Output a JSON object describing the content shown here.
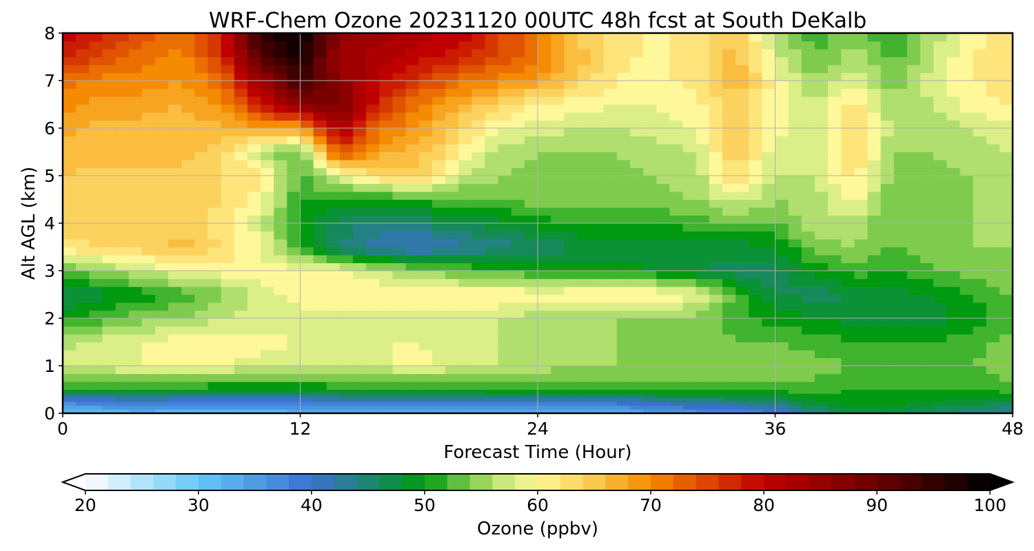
{
  "chart_data": {
    "type": "heatmap",
    "title": "WRF-Chem Ozone  20231120 00UTC 48h fcst at South DeKalb",
    "xlabel": "Forecast Time (Hour)",
    "ylabel": "Alt AGL (km)",
    "xlim": [
      0,
      48
    ],
    "ylim": [
      0,
      8
    ],
    "xticks": [
      0,
      12,
      24,
      36,
      48
    ],
    "yticks": [
      0,
      1,
      2,
      3,
      4,
      5,
      6,
      7,
      8
    ],
    "grid": true,
    "x": [
      0,
      2,
      4,
      6,
      8,
      10,
      12,
      14,
      16,
      18,
      20,
      22,
      24,
      26,
      28,
      30,
      32,
      34,
      36,
      38,
      40,
      42,
      44,
      46,
      48
    ],
    "y": [
      0,
      0.25,
      0.5,
      1,
      1.5,
      2,
      2.5,
      3,
      3.5,
      4,
      4.5,
      5,
      5.5,
      6,
      6.5,
      7,
      7.5,
      8
    ],
    "z": [
      [
        31,
        31,
        32,
        31,
        31,
        31,
        32,
        32,
        33,
        33,
        33,
        33,
        33,
        33,
        32,
        34,
        36,
        37,
        38,
        43,
        48,
        47,
        45,
        44,
        42
      ],
      [
        38,
        39,
        40,
        39,
        39,
        39,
        39,
        40,
        40,
        40,
        40,
        40,
        40,
        40,
        40,
        42,
        43,
        44,
        45,
        49,
        50,
        50,
        49,
        48,
        47
      ],
      [
        50,
        50,
        50,
        50,
        49,
        49,
        49,
        50,
        50,
        50,
        50,
        51,
        51,
        51,
        51,
        52,
        52,
        52,
        52,
        52,
        51,
        51,
        51,
        51,
        52
      ],
      [
        58,
        58,
        59,
        59,
        59,
        58,
        58,
        58,
        58,
        60,
        58,
        57,
        56,
        55,
        55,
        55,
        54,
        54,
        54,
        54,
        53,
        52,
        52,
        53,
        55
      ],
      [
        56,
        58,
        59,
        60,
        60,
        60,
        59,
        59,
        59,
        59,
        58,
        57,
        56,
        55,
        55,
        54,
        54,
        53,
        53,
        52,
        51,
        51,
        51,
        52,
        54
      ],
      [
        50,
        52,
        54,
        55,
        57,
        58,
        58,
        58,
        58,
        58,
        57,
        57,
        56,
        56,
        55,
        55,
        54,
        52,
        50,
        49,
        48,
        48,
        48,
        50,
        52
      ],
      [
        47,
        48,
        50,
        52,
        54,
        58,
        60,
        61,
        61,
        61,
        61,
        61,
        60,
        61,
        61,
        61,
        59,
        52,
        47,
        46,
        47,
        48,
        49,
        51,
        53
      ],
      [
        53,
        55,
        57,
        59,
        60,
        60,
        60,
        59,
        57,
        55,
        53,
        52,
        51,
        50,
        50,
        49,
        47,
        46,
        46,
        50,
        52,
        51,
        53,
        54,
        55
      ],
      [
        62,
        63,
        64,
        66,
        63,
        59,
        52,
        45,
        42,
        40,
        42,
        44,
        45,
        47,
        47,
        47,
        48,
        48,
        49,
        54,
        55,
        53,
        54,
        55,
        55
      ],
      [
        64,
        64,
        65,
        64,
        62,
        58,
        50,
        46,
        44,
        45,
        47,
        48,
        50,
        51,
        51,
        51,
        52,
        53,
        53,
        56,
        56,
        53,
        54,
        55,
        55
      ],
      [
        64,
        64,
        64,
        64,
        63,
        60,
        51,
        50,
        50,
        52,
        52,
        53,
        54,
        54,
        54,
        54,
        55,
        58,
        55,
        56,
        60,
        53,
        54,
        55,
        55
      ],
      [
        65,
        64,
        64,
        64,
        63,
        62,
        52,
        59,
        63,
        65,
        58,
        55,
        54,
        54,
        54,
        55,
        56,
        63,
        57,
        57,
        62,
        54,
        54,
        55,
        56
      ],
      [
        66,
        66,
        66,
        66,
        64,
        56,
        53,
        75,
        67,
        66,
        61,
        56,
        55,
        55,
        55,
        56,
        57,
        65,
        58,
        57,
        64,
        55,
        55,
        56,
        57
      ],
      [
        68,
        66,
        66,
        66,
        66,
        68,
        68,
        82,
        72,
        69,
        64,
        59,
        58,
        57,
        57,
        58,
        59,
        66,
        60,
        58,
        64,
        56,
        56,
        57,
        58
      ],
      [
        70,
        68,
        68,
        67,
        70,
        78,
        86,
        88,
        77,
        71,
        67,
        64,
        61,
        60,
        59,
        59,
        60,
        64,
        60,
        57,
        62,
        55,
        57,
        60,
        61
      ],
      [
        72,
        70,
        70,
        69,
        72,
        84,
        94,
        86,
        80,
        76,
        72,
        70,
        68,
        64,
        61,
        60,
        62,
        67,
        60,
        55,
        58,
        54,
        58,
        61,
        62
      ],
      [
        78,
        75,
        72,
        70,
        76,
        92,
        98,
        84,
        82,
        80,
        78,
        75,
        72,
        66,
        62,
        60,
        62,
        66,
        58,
        53,
        56,
        52,
        57,
        61,
        62
      ],
      [
        80,
        78,
        74,
        72,
        78,
        96,
        100,
        86,
        84,
        82,
        80,
        76,
        70,
        64,
        62,
        60,
        62,
        64,
        56,
        52,
        54,
        51,
        56,
        60,
        62
      ]
    ],
    "colorbar": {
      "label": "Ozone  (ppbv)",
      "min": 20,
      "max": 100,
      "ticks": [
        20,
        30,
        40,
        50,
        60,
        70,
        80,
        90,
        100
      ],
      "extend": "both",
      "colormap_stops": [
        {
          "value": 20,
          "color": "#ffffff"
        },
        {
          "value": 30,
          "color": "#64c8f7"
        },
        {
          "value": 40,
          "color": "#3c70cf"
        },
        {
          "value": 50,
          "color": "#009a10"
        },
        {
          "value": 54,
          "color": "#7fcb4e"
        },
        {
          "value": 57,
          "color": "#c9e97f"
        },
        {
          "value": 60,
          "color": "#fff89a"
        },
        {
          "value": 65,
          "color": "#fbc94f"
        },
        {
          "value": 70,
          "color": "#f58b00"
        },
        {
          "value": 80,
          "color": "#c00000"
        },
        {
          "value": 90,
          "color": "#6a0000"
        },
        {
          "value": 100,
          "color": "#000000"
        }
      ]
    }
  }
}
